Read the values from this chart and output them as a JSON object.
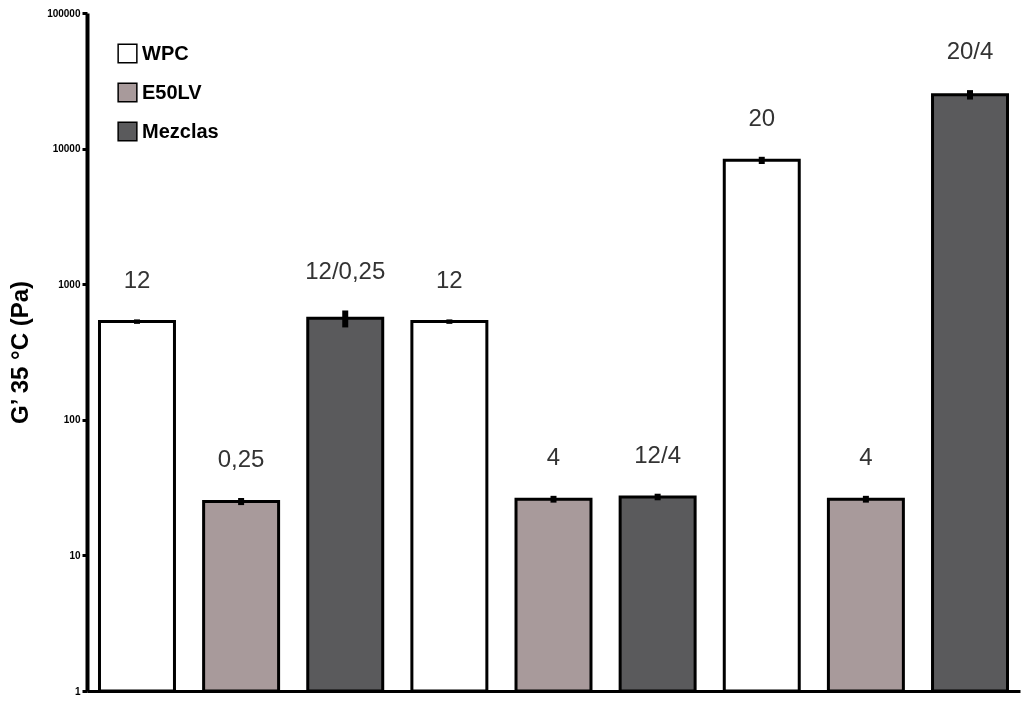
{
  "chart_data": {
    "type": "bar",
    "ylabel": "G’ 35 °C (Pa)",
    "categories": [
      null,
      null,
      null,
      null,
      null,
      null,
      null,
      null,
      null
    ],
    "series": [
      {
        "name": "WPC",
        "color": "#ffffff",
        "values": [
          530,
          null,
          null,
          530,
          null,
          null,
          8200,
          null,
          null
        ],
        "errors": [
          20,
          null,
          null,
          20,
          null,
          null,
          500,
          null,
          null
        ]
      },
      {
        "name": "E50LV",
        "color": "#a89a9b",
        "values": [
          null,
          25,
          null,
          null,
          26,
          null,
          null,
          26,
          null
        ],
        "errors": [
          null,
          1.5,
          null,
          null,
          1.5,
          null,
          null,
          1.5,
          null
        ]
      },
      {
        "name": "Mezclas",
        "color": "#5a5a5c",
        "values": [
          null,
          null,
          560,
          null,
          null,
          27,
          null,
          null,
          25000
        ],
        "errors": [
          null,
          null,
          80,
          null,
          null,
          1.5,
          null,
          null,
          2000
        ]
      }
    ],
    "annotations": [
      "12",
      "0,25",
      "12/0,25",
      "12",
      "4",
      "12/4",
      "20",
      "4",
      "20/4"
    ],
    "log": true,
    "ylim": [
      1,
      100000
    ],
    "yticks": [
      1,
      10,
      100,
      1000,
      10000,
      100000
    ],
    "grid": false,
    "legend": "top left"
  }
}
